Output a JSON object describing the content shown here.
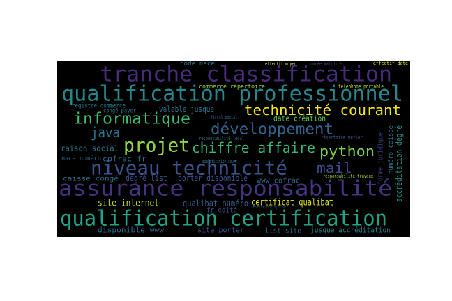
{
  "words": [
    {
      "text": "tranche classification",
      "color": "#472c7a"
    },
    {
      "text": "qualification professionnel",
      "color": "#23898e"
    },
    {
      "text": "technicité courant",
      "color": "#f1e51d"
    },
    {
      "text": "informatique",
      "color": "#3fbc73"
    },
    {
      "text": "développement",
      "color": "#33638d"
    },
    {
      "text": "java",
      "color": "#2a788e"
    },
    {
      "text": "projet",
      "color": "#8fd744"
    },
    {
      "text": "chiffre affaire",
      "color": "#35b779"
    },
    {
      "text": "python",
      "color": "#7ad151"
    },
    {
      "text": "raison social",
      "color": "#2a788e"
    },
    {
      "text": "niveau technicité",
      "color": "#3b528b"
    },
    {
      "text": "mail",
      "color": "#3e4a89"
    },
    {
      "text": "assurance responsabilité",
      "color": "#46337e"
    },
    {
      "text": "qualification certification",
      "color": "#20a386"
    },
    {
      "text": "site internet",
      "color": "#c2df23"
    },
    {
      "text": "qualibat numéro",
      "color": "#375b8d"
    },
    {
      "text": "certificat qualibat",
      "color": "#dde318"
    },
    {
      "text": "disponible www",
      "color": "#31688e"
    },
    {
      "text": "site porter",
      "color": "#3b528b"
    },
    {
      "text": "list site",
      "color": "#31688e"
    },
    {
      "text": "jusque accréditation",
      "color": "#26828e"
    },
    {
      "text": "degré list",
      "color": "#3b528b"
    },
    {
      "text": "porter disponible",
      "color": "#3b528b"
    },
    {
      "text": "www cofrac",
      "color": "#31688e"
    },
    {
      "text": "caisse congé",
      "color": "#2c728e"
    },
    {
      "text": "cofrac fr",
      "color": "#2c728e"
    },
    {
      "text": "nace numéro",
      "color": "#306a8e"
    },
    {
      "text": "valable jusque",
      "color": "#2c728e"
    },
    {
      "text": "date création",
      "color": "#5ec962"
    },
    {
      "text": "registre commerce",
      "color": "#2a788e"
    },
    {
      "text": "commerce répertoire",
      "color": "#9fda3a"
    },
    {
      "text": "code nace",
      "color": "#2a788e"
    },
    {
      "text": "répertoire métier",
      "color": "#3b528b"
    },
    {
      "text": "fr édité",
      "color": "#3b528b"
    },
    {
      "text": "téléphone portable",
      "color": "#b5de2b"
    },
    {
      "text": "effectif moyen",
      "color": "#d8e219"
    },
    {
      "text": "responsabilité légal",
      "color": "#2a788e"
    },
    {
      "text": "fiscal social",
      "color": "#31688e"
    },
    {
      "text": "responsabilité travaux",
      "color": "#a5db36"
    },
    {
      "text": "réserve entreprise",
      "color": "#3b528b"
    },
    {
      "text": "congé payer",
      "color": "#2c728e"
    },
    {
      "text": "qualification cours",
      "color": "#2a788e"
    },
    {
      "text": "durée validité",
      "color": "#3b528b"
    },
    {
      "text": "effectif date",
      "color": "#dde318"
    },
    {
      "text": "accréditation degré",
      "color": "#21918c"
    },
    {
      "text": "forme juridique",
      "color": "#414487"
    },
    {
      "text": "numéro caisse",
      "color": "#2a788e"
    }
  ]
}
